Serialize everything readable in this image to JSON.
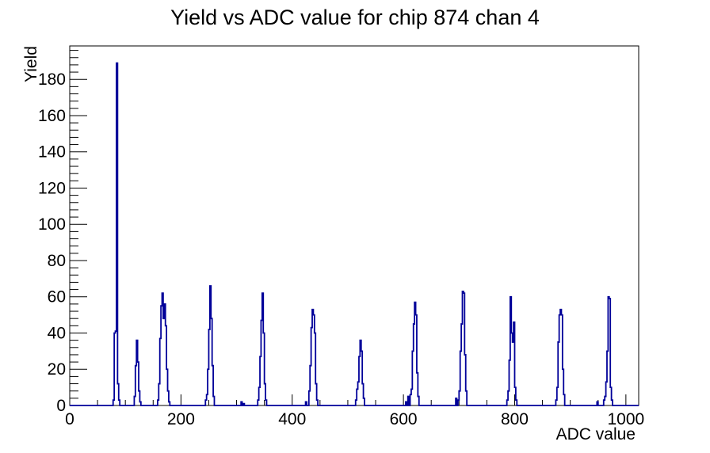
{
  "page": {
    "background": "#ffffff"
  },
  "chart_data": {
    "type": "bar",
    "style": "step-histogram-outline",
    "title": "Yield vs ADC value for chip 874 chan 4",
    "xlabel": "ADC value",
    "ylabel": "Yield",
    "xlim": [
      0,
      1023
    ],
    "ylim": [
      0,
      198.45
    ],
    "grid": false,
    "legend": false,
    "line_color": "#000099",
    "axis_color": "#000000",
    "bin_width": 2,
    "x_major_ticks": [
      0,
      200,
      400,
      600,
      800,
      1000
    ],
    "x_minor_step": 50,
    "y_major_ticks": [
      0,
      20,
      40,
      60,
      80,
      100,
      120,
      140,
      160,
      180
    ],
    "y_minor_step": 4,
    "peaks": [
      [
        84,
        189
      ],
      [
        120,
        36
      ],
      [
        166,
        62
      ],
      [
        252,
        66
      ],
      [
        346,
        62
      ],
      [
        436,
        53
      ],
      [
        522,
        36
      ],
      [
        620,
        57
      ],
      [
        706,
        63
      ],
      [
        792,
        60
      ],
      [
        882,
        53
      ],
      [
        968,
        60
      ]
    ],
    "bins": [
      [
        78,
        3
      ],
      [
        80,
        40
      ],
      [
        82,
        41
      ],
      [
        84,
        189
      ],
      [
        86,
        12
      ],
      [
        88,
        3
      ],
      [
        116,
        5
      ],
      [
        118,
        22
      ],
      [
        120,
        36
      ],
      [
        122,
        24
      ],
      [
        124,
        8
      ],
      [
        126,
        2
      ],
      [
        158,
        3
      ],
      [
        160,
        12
      ],
      [
        162,
        37
      ],
      [
        164,
        55
      ],
      [
        166,
        62
      ],
      [
        168,
        48
      ],
      [
        170,
        56
      ],
      [
        172,
        44
      ],
      [
        174,
        20
      ],
      [
        176,
        8
      ],
      [
        178,
        2
      ],
      [
        244,
        3
      ],
      [
        246,
        6
      ],
      [
        248,
        20
      ],
      [
        250,
        42
      ],
      [
        252,
        66
      ],
      [
        254,
        48
      ],
      [
        256,
        22
      ],
      [
        258,
        5
      ],
      [
        308,
        2
      ],
      [
        312,
        1
      ],
      [
        338,
        3
      ],
      [
        340,
        10
      ],
      [
        342,
        27
      ],
      [
        344,
        47
      ],
      [
        346,
        62
      ],
      [
        348,
        40
      ],
      [
        350,
        12
      ],
      [
        352,
        3
      ],
      [
        424,
        2
      ],
      [
        430,
        8
      ],
      [
        432,
        22
      ],
      [
        434,
        43
      ],
      [
        436,
        53
      ],
      [
        438,
        50
      ],
      [
        440,
        40
      ],
      [
        442,
        12
      ],
      [
        444,
        3
      ],
      [
        514,
        3
      ],
      [
        516,
        9
      ],
      [
        518,
        13
      ],
      [
        520,
        27
      ],
      [
        522,
        36
      ],
      [
        524,
        30
      ],
      [
        526,
        12
      ],
      [
        528,
        4
      ],
      [
        604,
        2
      ],
      [
        608,
        5
      ],
      [
        612,
        6
      ],
      [
        614,
        9
      ],
      [
        616,
        30
      ],
      [
        618,
        45
      ],
      [
        620,
        57
      ],
      [
        622,
        50
      ],
      [
        624,
        18
      ],
      [
        626,
        5
      ],
      [
        694,
        4
      ],
      [
        698,
        3
      ],
      [
        700,
        8
      ],
      [
        702,
        30
      ],
      [
        704,
        45
      ],
      [
        706,
        63
      ],
      [
        708,
        62
      ],
      [
        710,
        28
      ],
      [
        712,
        8
      ],
      [
        786,
        3
      ],
      [
        788,
        8
      ],
      [
        790,
        25
      ],
      [
        792,
        60
      ],
      [
        794,
        40
      ],
      [
        796,
        35
      ],
      [
        798,
        46
      ],
      [
        800,
        10
      ],
      [
        802,
        3
      ],
      [
        874,
        3
      ],
      [
        876,
        10
      ],
      [
        878,
        35
      ],
      [
        880,
        50
      ],
      [
        882,
        53
      ],
      [
        884,
        50
      ],
      [
        886,
        20
      ],
      [
        888,
        6
      ],
      [
        948,
        2
      ],
      [
        960,
        3
      ],
      [
        962,
        5
      ],
      [
        964,
        13
      ],
      [
        966,
        30
      ],
      [
        968,
        60
      ],
      [
        970,
        59
      ],
      [
        972,
        10
      ],
      [
        974,
        3
      ]
    ]
  }
}
